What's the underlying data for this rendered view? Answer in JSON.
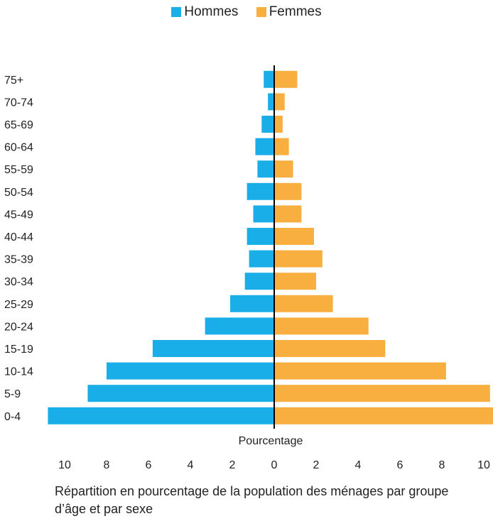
{
  "chart_data": {
    "type": "bar",
    "orientation": "horizontal",
    "style": "population-pyramid",
    "categories": [
      "0-4",
      "5-9",
      "10-14",
      "15-19",
      "20-24",
      "25-29",
      "30-34",
      "35-39",
      "40-44",
      "45-49",
      "50-54",
      "55-59",
      "60-64",
      "65-69",
      "70-74",
      "75+"
    ],
    "series": [
      {
        "name": "Hommes",
        "color": "#1AAEE8",
        "values": [
          10.8,
          8.9,
          8.0,
          5.8,
          3.3,
          2.1,
          1.4,
          1.2,
          1.3,
          1.0,
          1.3,
          0.8,
          0.9,
          0.6,
          0.3,
          0.5
        ]
      },
      {
        "name": "Femmes",
        "color": "#F8AF40",
        "values": [
          10.8,
          10.3,
          8.2,
          5.3,
          4.5,
          2.8,
          2.0,
          2.3,
          1.9,
          1.3,
          1.3,
          0.9,
          0.7,
          0.4,
          0.5,
          1.1
        ]
      }
    ],
    "xlabel": "Pourcentage",
    "xticks": [
      10,
      8,
      6,
      4,
      2,
      0,
      2,
      4,
      6,
      8,
      10
    ],
    "xlim": [
      -10.8,
      10.8
    ],
    "legend_position": "top-center",
    "grid": false
  },
  "caption": "Répartition en pourcentage de la population des ménages par groupe d’âge et par sexe"
}
